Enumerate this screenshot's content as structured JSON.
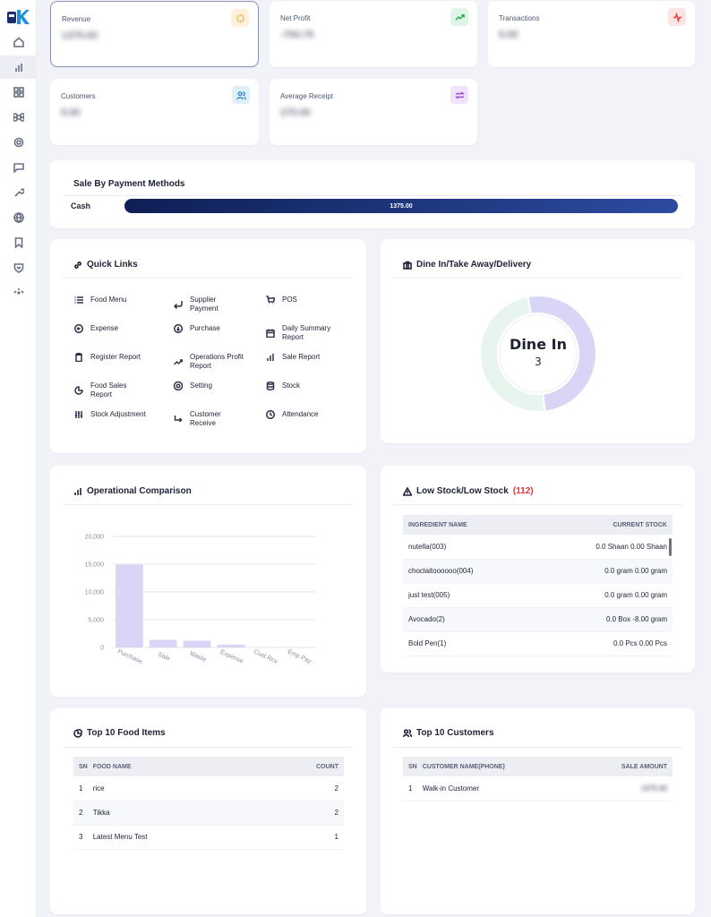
{
  "stats": [
    {
      "label": "Revenue",
      "value": "1375.00",
      "icon": "sparkle-icon",
      "color": "#e4a72d",
      "bg": "#fdf1dc"
    },
    {
      "label": "Net Profit",
      "value": "-794.75",
      "icon": "trending-up-icon",
      "color": "#2fa84f",
      "bg": "#e1f5e7"
    },
    {
      "label": "Transactions",
      "value": "5.00",
      "icon": "activity-icon",
      "color": "#e0474c",
      "bg": "#fde4e4"
    },
    {
      "label": "Customers",
      "value": "5.00",
      "icon": "users-icon",
      "color": "#3b8dd6",
      "bg": "#e0f0fb"
    },
    {
      "label": "Average Receipt",
      "value": "275.00",
      "icon": "repeat-icon",
      "color": "#9b4fd6",
      "bg": "#f1e3fb"
    }
  ],
  "payment": {
    "title": "Sale By Payment Methods",
    "method": "Cash",
    "amount": "1375.00",
    "share": 1.0,
    "color": "#1b2d6b"
  },
  "quick_links": {
    "title": "Quick Links",
    "items": [
      {
        "label": "Food Menu",
        "icon": "list-icon"
      },
      {
        "label": "Supplier Payment",
        "icon": "return-arrow-icon"
      },
      {
        "label": "POS",
        "icon": "cart-icon"
      },
      {
        "label": "Expense",
        "icon": "circle-arrow-left-icon"
      },
      {
        "label": "Purchase",
        "icon": "circle-arrow-down-icon"
      },
      {
        "label": "Daily Summary Report",
        "icon": "calendar-icon"
      },
      {
        "label": "Register Report",
        "icon": "clipboard-icon"
      },
      {
        "label": "Operations Profit Report",
        "icon": "trending-up-icon"
      },
      {
        "label": "Sale Report",
        "icon": "bar-chart-icon"
      },
      {
        "label": "Food Sales Report",
        "icon": "pie-chart-icon"
      },
      {
        "label": "Setting",
        "icon": "gear-icon"
      },
      {
        "label": "Stock",
        "icon": "database-icon"
      },
      {
        "label": "Stock Adjustment",
        "icon": "sliders-icon"
      },
      {
        "label": "Customer Receive",
        "icon": "corner-down-right-icon"
      },
      {
        "label": "Attendance",
        "icon": "clock-icon"
      }
    ]
  },
  "dine": {
    "title": "Dine In/Take Away/Delivery",
    "center_label": "Dine In",
    "center_value": "3",
    "dine_in_share": 0.51,
    "dine_color": "#d9d5f7",
    "other_color": "#e8f5ef"
  },
  "operational": {
    "title": "Operational Comparison"
  },
  "chart_data": {
    "type": "bar",
    "categories": [
      "Purchase",
      "Sale",
      "Waste",
      "Expense",
      "Cust Rcv",
      "Emp Pay"
    ],
    "values": [
      14900,
      1375,
      1200,
      500,
      0,
      0
    ],
    "ylim": [
      0,
      20000
    ],
    "yticks": [
      "0",
      "5,000",
      "10,000",
      "15,000",
      "20,000"
    ],
    "bar_color": "#d9d5f7",
    "grid": true
  },
  "low_stock": {
    "title": "Low Stock/Low Stock",
    "count": "(112)",
    "col1": "INGREDIENT NAME",
    "col2": "CURRENT STOCK",
    "rows": [
      {
        "name": "nutella(003)",
        "stock": "0.0 Shaan 0.00 Shaan"
      },
      {
        "name": "choclaitoooooo(004)",
        "stock": "0.0 gram 0.00 gram"
      },
      {
        "name": "just test(005)",
        "stock": "0.0 gram 0.00 gram"
      },
      {
        "name": "Avocado(2)",
        "stock": "0.0 Box -8.00 gram"
      },
      {
        "name": "Bold Pen(1)",
        "stock": "0.0 Pcs 0.00 Pcs"
      }
    ]
  },
  "top_food": {
    "title": "Top 10 Food Items",
    "col_sn": "SN",
    "col_name": "FOOD NAME",
    "col_count": "COUNT",
    "rows": [
      {
        "sn": "1",
        "name": "rice",
        "count": "2"
      },
      {
        "sn": "2",
        "name": "Tikka",
        "count": "2"
      },
      {
        "sn": "3",
        "name": "Latest Menu Test",
        "count": "1"
      }
    ]
  },
  "top_customers": {
    "title": "Top 10 Customers",
    "col_sn": "SN",
    "col_name": "CUSTOMER NAME(PHONE)",
    "col_amount": "SALE AMOUNT",
    "rows": [
      {
        "sn": "1",
        "name": "Walk-in Customer",
        "amount": "1375.00"
      }
    ]
  },
  "sidebar": [
    "home-icon",
    "bar-chart-icon",
    "grid-icon",
    "command-icon",
    "gear-icon",
    "message-icon",
    "wrench-icon",
    "globe-icon",
    "bookmark-icon",
    "shield-icon",
    "more-icon"
  ]
}
